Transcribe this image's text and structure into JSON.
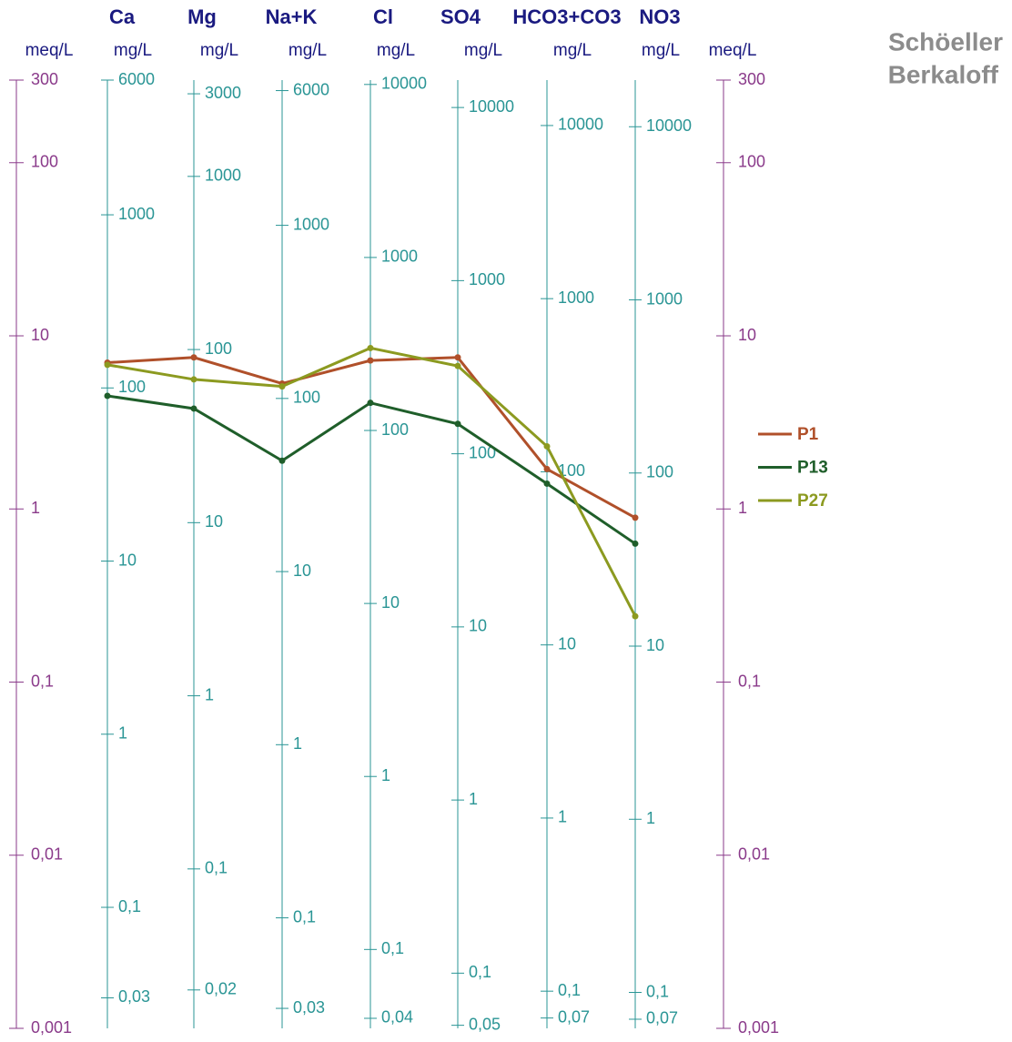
{
  "chart_data": {
    "type": "schoeller",
    "title_lines": [
      "Schöeller",
      "Berkaloff"
    ],
    "meq_axis": {
      "unit": "meq/L",
      "color": "#8a3a8a",
      "ylim": [
        0.001,
        300
      ],
      "log": true,
      "yticks": [
        300,
        100,
        10,
        1,
        {
          "value": 0.1,
          "label": "0,1"
        },
        {
          "value": 0.01,
          "label": "0,01"
        },
        {
          "value": 0.001,
          "label": "0,001"
        }
      ]
    },
    "axis_color": "#2a9595",
    "categories": [
      "Ca",
      "Mg",
      "Na+K",
      "Cl",
      "SO4",
      "HCO3+CO3",
      "NO3"
    ],
    "columns": [
      {
        "unit": "mg/L",
        "ylim": [
          0.02,
          6000
        ],
        "yticks": [
          6000,
          1000,
          100,
          10,
          1,
          {
            "value": 0.1,
            "label": "0,1"
          },
          {
            "value": 0.03,
            "label": "0,03"
          }
        ]
      },
      {
        "unit": "mg/L",
        "ylim": [
          0.012,
          3600
        ],
        "yticks": [
          3000,
          1000,
          100,
          10,
          1,
          {
            "value": 0.1,
            "label": "0,1"
          },
          {
            "value": 0.02,
            "label": "0,02"
          }
        ]
      },
      {
        "unit": "mg/L",
        "ylim": [
          0.023,
          6900
        ],
        "yticks": [
          6000,
          1000,
          100,
          10,
          1,
          {
            "value": 0.1,
            "label": "0,1"
          },
          {
            "value": 0.03,
            "label": "0,03"
          }
        ]
      },
      {
        "unit": "mg/L",
        "ylim": [
          0.035,
          10600
        ],
        "yticks": [
          10000,
          1000,
          100,
          10,
          1,
          {
            "value": 0.1,
            "label": "0,1"
          },
          {
            "value": 0.04,
            "label": "0,04"
          }
        ]
      },
      {
        "unit": "mg/L",
        "ylim": [
          0.048,
          14400
        ],
        "yticks": [
          10000,
          1000,
          100,
          10,
          1,
          {
            "value": 0.1,
            "label": "0,1"
          },
          {
            "value": 0.05,
            "label": "0,05"
          }
        ]
      },
      {
        "unit": "mg/L",
        "ylim": [
          0.061,
          18300
        ],
        "yticks": [
          10000,
          1000,
          100,
          10,
          1,
          {
            "value": 0.1,
            "label": "0,1"
          },
          {
            "value": 0.07,
            "label": "0,07"
          }
        ]
      },
      {
        "unit": "mg/L",
        "ylim": [
          0.062,
          18600
        ],
        "yticks": [
          10000,
          1000,
          100,
          10,
          1,
          {
            "value": 0.1,
            "label": "0,1"
          },
          {
            "value": 0.07,
            "label": "0,07"
          }
        ]
      }
    ],
    "series": [
      {
        "name": "P1",
        "color": "#b0502a",
        "values": [
          7.0,
          7.5,
          5.3,
          7.2,
          7.5,
          1.7,
          0.89
        ]
      },
      {
        "name": "P13",
        "color": "#1f5e2a",
        "values": [
          4.5,
          3.8,
          1.9,
          4.1,
          3.1,
          1.4,
          0.63
        ]
      },
      {
        "name": "P27",
        "color": "#8c9a20",
        "values": [
          6.8,
          5.6,
          5.1,
          8.5,
          6.7,
          2.3,
          0.24
        ]
      }
    ],
    "legend": "right"
  }
}
